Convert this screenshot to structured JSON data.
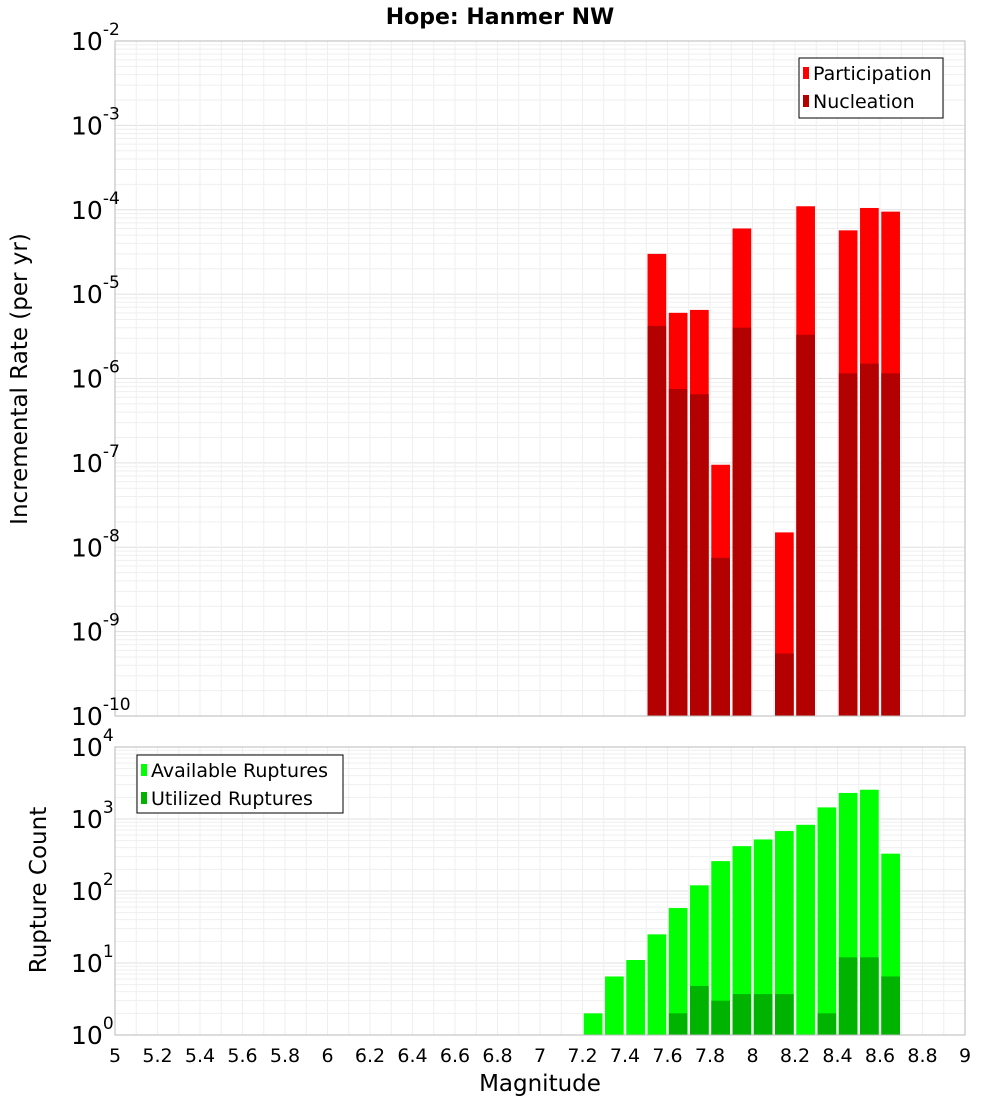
{
  "chart_data": [
    {
      "type": "bar",
      "title": "Hope: Hanmer NW",
      "ylabel": "Incremental Rate (per yr)",
      "yscale": "log",
      "ylim_exp": [
        -10,
        -2
      ],
      "legend_position": "top-right",
      "xticks": [
        "5",
        "5.2",
        "5.4",
        "5.6",
        "5.8",
        "6",
        "6.2",
        "6.4",
        "6.6",
        "6.8",
        "7",
        "7.2",
        "7.4",
        "7.6",
        "7.8",
        "8",
        "8.2",
        "8.4",
        "8.6",
        "8.8",
        "9"
      ],
      "x": [
        7.55,
        7.65,
        7.75,
        7.85,
        7.95,
        8.15,
        8.25,
        8.45,
        8.55,
        8.65
      ],
      "series": [
        {
          "name": "Participation",
          "color": "#ff0000",
          "values": [
            3e-05,
            6e-06,
            6.5e-06,
            9.5e-08,
            6e-05,
            1.5e-08,
            0.00011,
            5.7e-05,
            0.000105,
            9.5e-05
          ]
        },
        {
          "name": "Nucleation",
          "color": "#b30000",
          "values": [
            4.2e-06,
            7.5e-07,
            6.5e-07,
            7.5e-09,
            4e-06,
            5.5e-10,
            3.3e-06,
            1.15e-06,
            1.5e-06,
            1.15e-06
          ]
        }
      ]
    },
    {
      "type": "bar",
      "title": "",
      "xlabel": "Magnitude",
      "ylabel": "Rupture Count",
      "yscale": "log",
      "ylim_exp": [
        0,
        4
      ],
      "legend_position": "top-left",
      "xticks": [
        "5",
        "5.2",
        "5.4",
        "5.6",
        "5.8",
        "6",
        "6.2",
        "6.4",
        "6.6",
        "6.8",
        "7",
        "7.2",
        "7.4",
        "7.6",
        "7.8",
        "8",
        "8.2",
        "8.4",
        "8.6",
        "8.8",
        "9"
      ],
      "x": [
        6.75,
        6.95,
        7.15,
        7.25,
        7.35,
        7.45,
        7.55,
        7.65,
        7.75,
        7.85,
        7.95,
        8.05,
        8.15,
        8.25,
        8.35,
        8.45,
        8.55,
        8.65
      ],
      "series": [
        {
          "name": "Available Ruptures",
          "color": "#00ff00",
          "values": [
            1,
            1,
            1,
            2,
            6.5,
            11,
            25,
            58,
            120,
            260,
            420,
            520,
            680,
            830,
            1450,
            2300,
            2550,
            330
          ]
        },
        {
          "name": "Utilized Ruptures",
          "color": "#00b300",
          "values": [
            0,
            0,
            0,
            0,
            0,
            0,
            1,
            2,
            4.8,
            3,
            3.7,
            3.7,
            3.7,
            1,
            2,
            12,
            12,
            6.5
          ]
        }
      ]
    }
  ]
}
